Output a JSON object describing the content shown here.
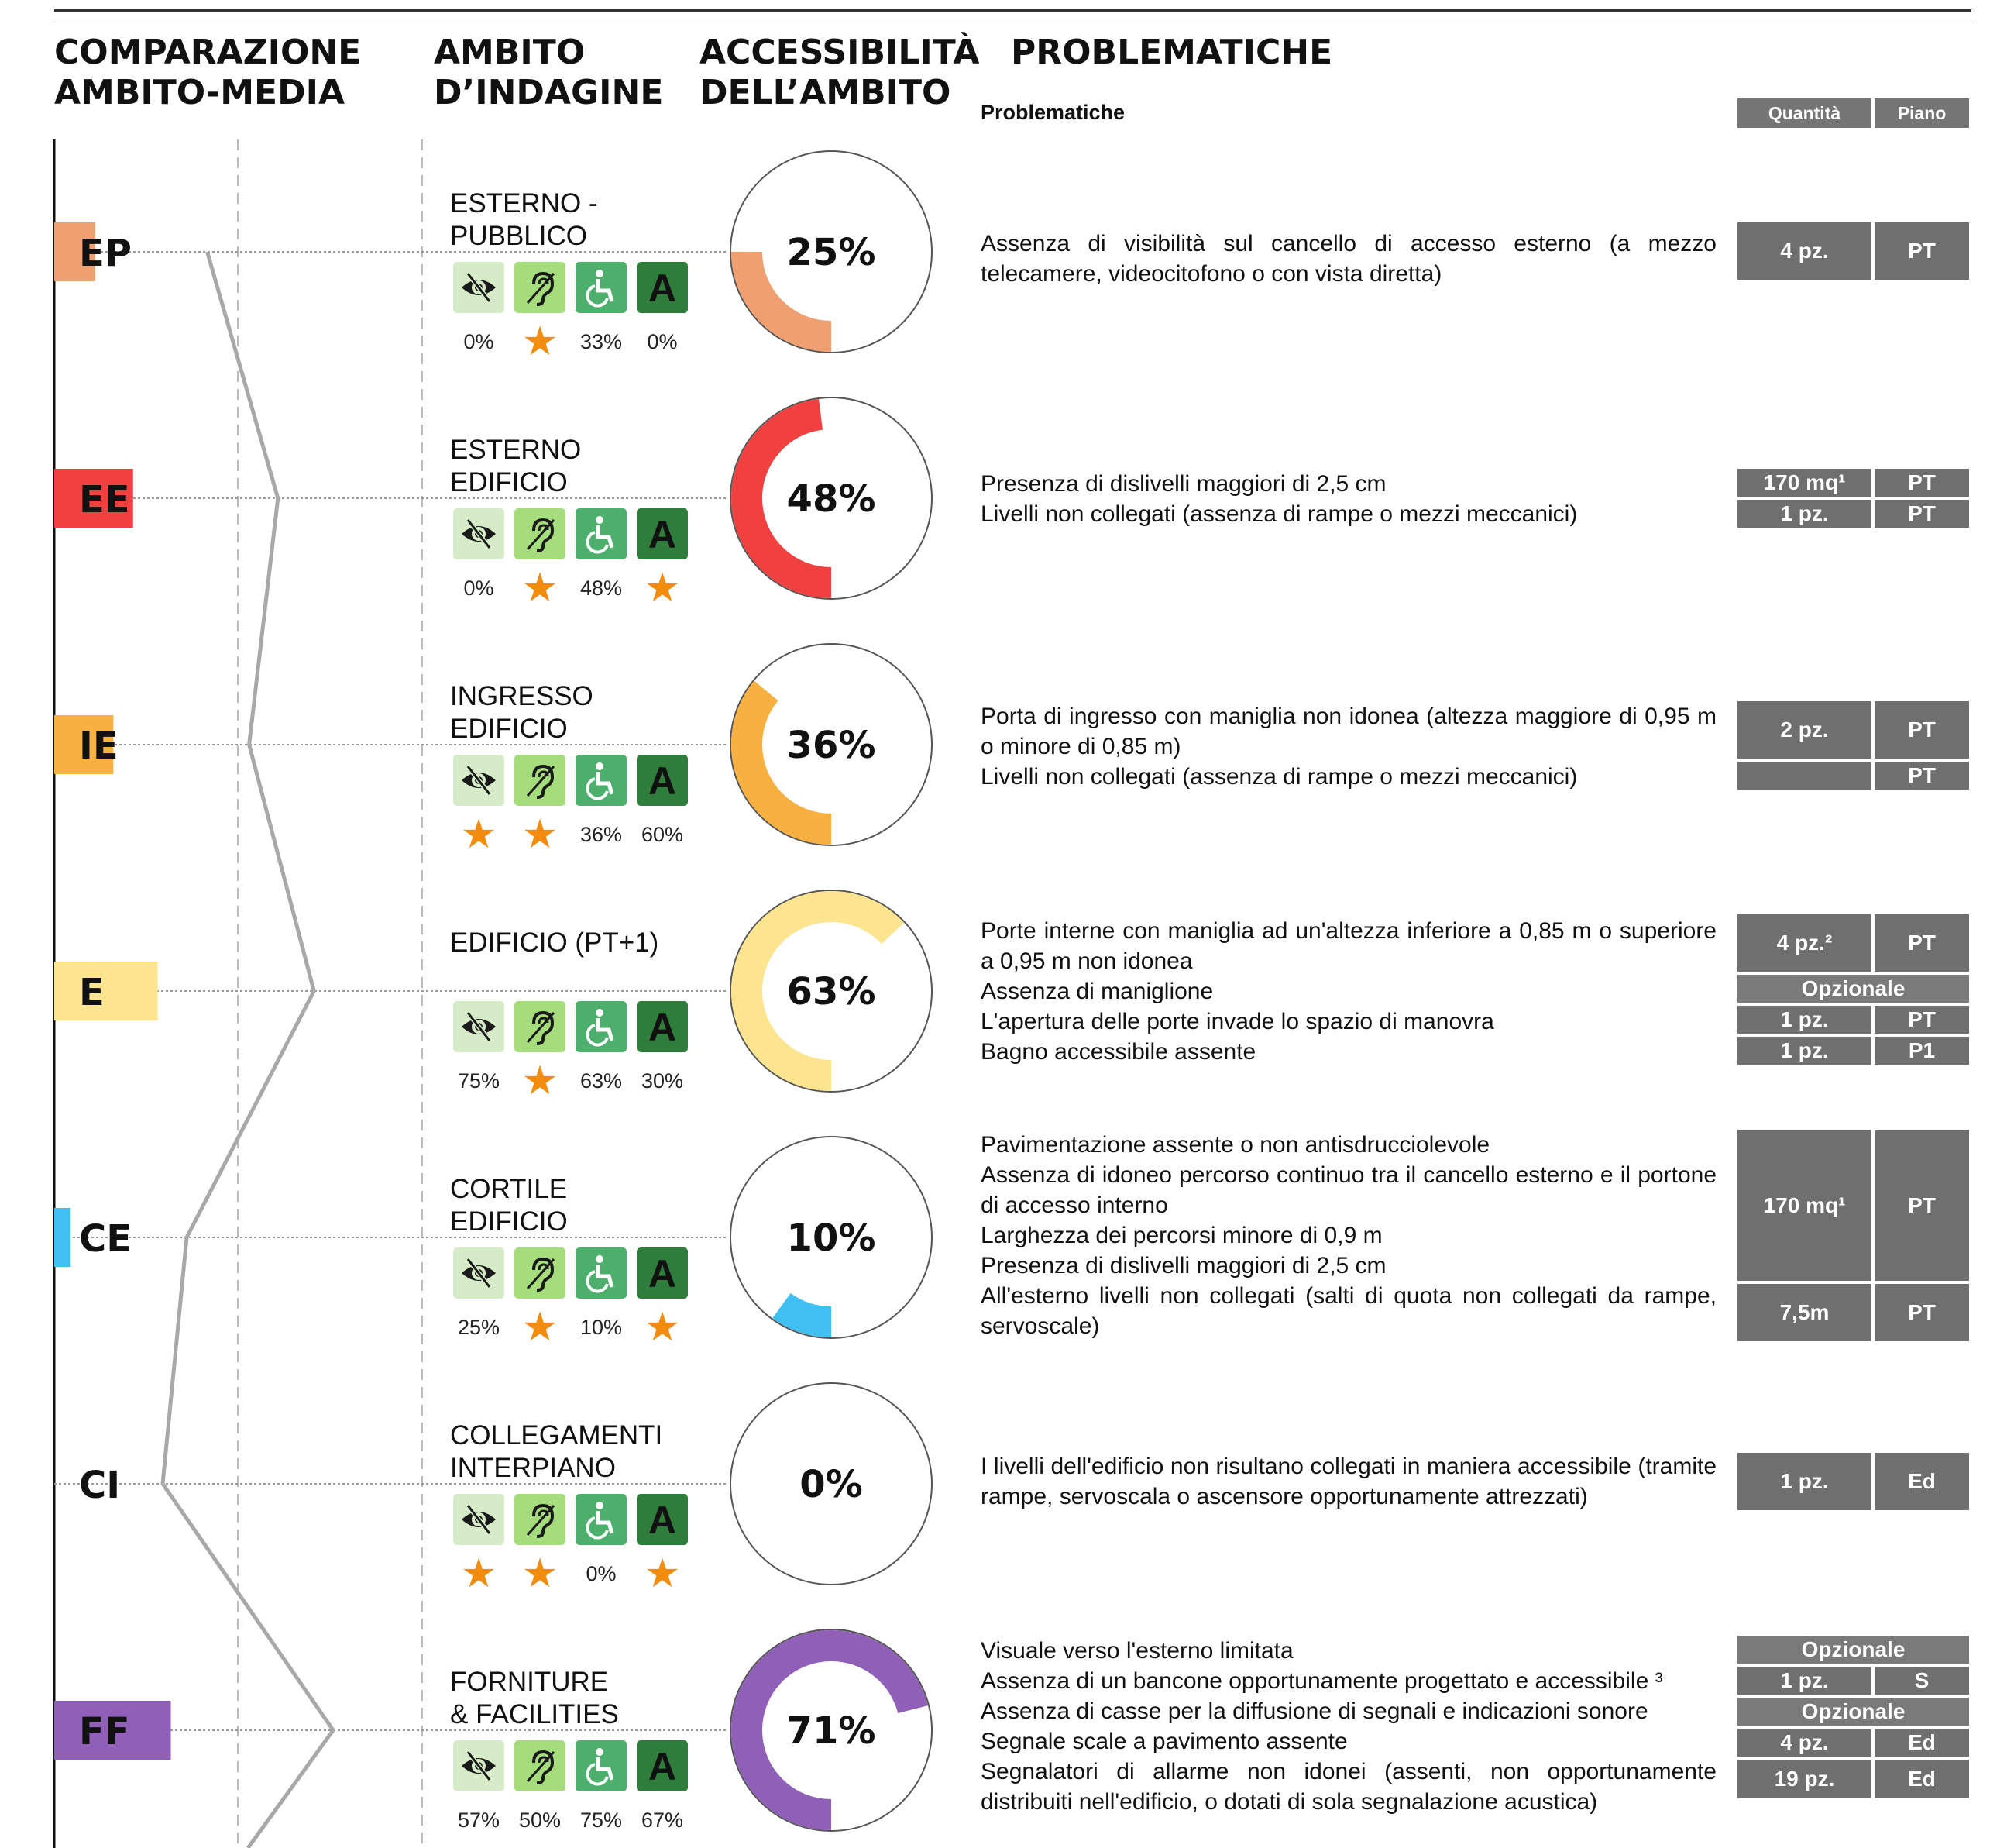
{
  "headers": {
    "col1": [
      "COMPARAZIONE",
      "AMBITO-MEDIA"
    ],
    "col2": [
      "AMBITO",
      "D’INDAGINE"
    ],
    "col3": [
      "ACCESSIBILITÀ",
      "DELL’AMBITO"
    ],
    "col4": "PROBLEMATICHE",
    "problems_sub": "Problematiche",
    "qty_head": "Quantità",
    "floor_head": "Piano"
  },
  "icons": [
    "eye-crossed",
    "ear-crossed",
    "wheelchair",
    "letter-a"
  ],
  "icon_colors": [
    "#d6ecc9",
    "#a5dc7c",
    "#4caf6b",
    "#2e7d3a"
  ],
  "star_color": "#f28c0f",
  "chart_data": {
    "type": "bar",
    "categories": [
      "EP",
      "EE",
      "IE",
      "E",
      "CE",
      "CI",
      "FF"
    ],
    "values": [
      25,
      48,
      36,
      63,
      10,
      0,
      71
    ],
    "series_color": [
      "#f0a070",
      "#f04040",
      "#f8b040",
      "#fde590",
      "#40c0f0",
      "#ffffff",
      "#9060b8"
    ],
    "average_line": true,
    "grid": false
  },
  "scopes": [
    {
      "code": "EP",
      "title": [
        "ESTERNO -",
        "PUBBLICO"
      ],
      "percent": "25%",
      "icon_values": [
        "0%",
        "★",
        "33%",
        "0%"
      ],
      "problems": [
        "Assenza di visibilità sul cancello di accesso esterno (a mezzo telecamere, videocitofono o con vista diretta)"
      ],
      "table": [
        {
          "qty": "4 pz.",
          "floor": "PT"
        }
      ]
    },
    {
      "code": "EE",
      "title": [
        "ESTERNO",
        "EDIFICIO"
      ],
      "percent": "48%",
      "icon_values": [
        "0%",
        "★",
        "48%",
        "★"
      ],
      "problems": [
        "Presenza di dislivelli maggiori di 2,5 cm",
        "Livelli non collegati (assenza di rampe o mezzi meccanici)"
      ],
      "table": [
        {
          "qty": "170 mq¹",
          "floor": "PT"
        },
        {
          "qty": "1 pz.",
          "floor": "PT"
        }
      ]
    },
    {
      "code": "IE",
      "title": [
        "INGRESSO",
        "EDIFICIO"
      ],
      "percent": "36%",
      "icon_values": [
        "★",
        "★",
        "36%",
        "60%"
      ],
      "problems": [
        "Porta di ingresso con maniglia non idonea (altezza maggiore di 0,95 m o minore di 0,85 m)",
        "Livelli non collegati (assenza di rampe o mezzi meccanici)"
      ],
      "table": [
        {
          "qty": "2 pz.",
          "floor": "PT"
        },
        {
          "qty": "",
          "floor": "PT"
        }
      ]
    },
    {
      "code": "E",
      "title": [
        "EDIFICIO (PT+1)"
      ],
      "percent": "63%",
      "icon_values": [
        "75%",
        "★",
        "63%",
        "30%"
      ],
      "problems": [
        "Porte interne con maniglia ad un'altezza inferiore a 0,85 m o superiore a 0,95 m non idonea",
        "Assenza di maniglione",
        "L'apertura delle porte invade lo spazio di manovra",
        "Bagno accessibile assente"
      ],
      "table": [
        {
          "qty": "4 pz.²",
          "floor": "PT"
        },
        {
          "wide": "Opzionale"
        },
        {
          "qty": "1 pz.",
          "floor": "PT"
        },
        {
          "qty": "1 pz.",
          "floor": "P1"
        }
      ]
    },
    {
      "code": "CE",
      "title": [
        "CORTILE",
        "EDIFICIO"
      ],
      "percent": "10%",
      "icon_values": [
        "25%",
        "★",
        "10%",
        "★"
      ],
      "problems": [
        "Pavimentazione assente o non antisdrucciolevole",
        "Assenza di idoneo percorso continuo tra il cancello esterno e il portone di accesso interno",
        "Larghezza dei percorsi minore di 0,9 m",
        "Presenza di dislivelli maggiori di 2,5 cm",
        "All'esterno livelli non collegati (salti di quota non collegati da rampe, servoscale)"
      ],
      "table": [
        {
          "qty": "170 mq¹",
          "floor": "PT"
        },
        {
          "qty": "7,5m",
          "floor": "PT"
        }
      ]
    },
    {
      "code": "CI",
      "title": [
        "COLLEGAMENTI",
        "INTERPIANO"
      ],
      "percent": "0%",
      "icon_values": [
        "★",
        "★",
        "0%",
        "★"
      ],
      "problems": [
        "I livelli dell'edificio non risultano collegati in maniera accessibile (tramite rampe, servoscala o ascensore opportunamente attrezzati)"
      ],
      "table": [
        {
          "qty": "1 pz.",
          "floor": "Ed"
        }
      ]
    },
    {
      "code": "FF",
      "title": [
        "FORNITURE",
        "& FACILITIES"
      ],
      "percent": "71%",
      "icon_values": [
        "57%",
        "50%",
        "75%",
        "67%"
      ],
      "problems": [
        "Visuale verso l'esterno limitata",
        "Assenza di un bancone opportunamente progettato e accessibile ³",
        "Assenza di casse per la diffusione di segnali e indicazioni sonore",
        "Segnale scale a pavimento assente",
        "Segnalatori di allarme non idonei (assenti, non opportunamente distribuiti nell'edificio, o dotati di sola segnalazione acustica)"
      ],
      "table": [
        {
          "wide": "Opzionale"
        },
        {
          "qty": "1 pz.",
          "floor": "S"
        },
        {
          "wide": "Opzionale"
        },
        {
          "qty": "4 pz.",
          "floor": "Ed"
        },
        {
          "qty": "19 pz.",
          "floor": "Ed"
        }
      ]
    }
  ]
}
